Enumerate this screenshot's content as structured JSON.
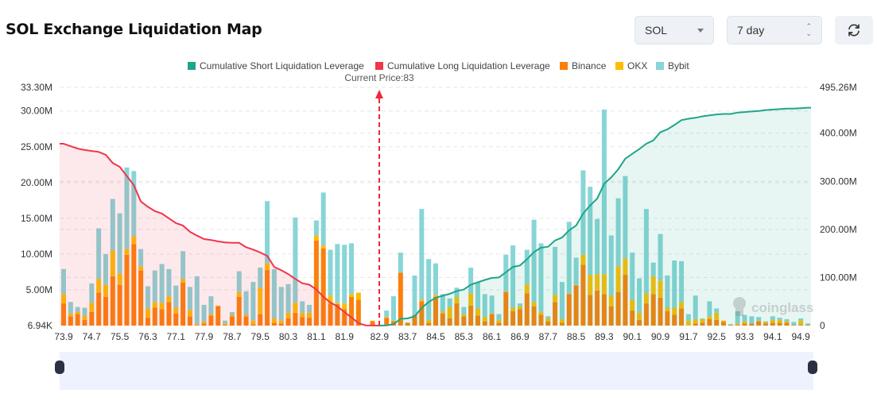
{
  "header": {
    "title": "SOL Exchange Liquidation Map",
    "symbol": "SOL",
    "period": "7 day",
    "refresh_icon": "refresh-icon"
  },
  "chart_data": {
    "type": "bar",
    "legend": [
      "Cumulative Short Liquidation Leverage",
      "Cumulative Long Liquidation Leverage",
      "Binance",
      "OKX",
      "Bybit"
    ],
    "legend_position": "top",
    "current_price_label": "Current Price:83",
    "current_price": 82.9,
    "watermark": "coinglass",
    "colors": {
      "short": "#1fa58a",
      "long": "#f0364a",
      "Binance": "#fb800a",
      "OKX": "#fcbd05",
      "Bybit": "#88d5d7"
    },
    "x_start": 73.9,
    "x_step": 0.2,
    "x_ticks": [
      "73.9",
      "74.7",
      "75.5",
      "76.3",
      "77.1",
      "77.9",
      "78.7",
      "79.5",
      "80.3",
      "81.1",
      "81.9",
      "82.9",
      "83.7",
      "84.5",
      "85.3",
      "86.1",
      "86.9",
      "87.7",
      "88.5",
      "89.3",
      "90.1",
      "90.9",
      "91.7",
      "92.5",
      "93.3",
      "94.1",
      "94.9"
    ],
    "y_left": {
      "min": 0.00694,
      "max": 33.3,
      "unit": "M",
      "ticks": [
        "33.30M",
        "30.00M",
        "25.00M",
        "20.00M",
        "15.00M",
        "10.00M",
        "5.00M",
        "6.94K"
      ],
      "tick_values": [
        33.3,
        30,
        25,
        20,
        15,
        10,
        5,
        0
      ]
    },
    "y_right": {
      "min": 0,
      "max": 495.26,
      "unit": "M",
      "ticks": [
        "495.26M",
        "400.00M",
        "300.00M",
        "200.00M",
        "100.00M",
        "0"
      ],
      "tick_values": [
        495.26,
        400,
        300,
        200,
        100,
        0
      ]
    },
    "grid": true,
    "series_order": [
      "Binance",
      "OKX",
      "Bybit"
    ],
    "bars": [
      [
        3.1,
        1.3,
        3.5
      ],
      [
        1.3,
        0.4,
        1.6
      ],
      [
        1.6,
        0.3,
        0.7
      ],
      [
        0.8,
        0.6,
        1.1
      ],
      [
        1.9,
        1.3,
        2.7
      ],
      [
        4.6,
        1.9,
        7.1
      ],
      [
        4.0,
        1.7,
        4.3
      ],
      [
        6.9,
        3.6,
        7.2
      ],
      [
        5.7,
        1.6,
        8.4
      ],
      [
        9.9,
        0.8,
        11.4
      ],
      [
        11.4,
        1.1,
        9.1
      ],
      [
        7.7,
        0.6,
        2.4
      ],
      [
        1.1,
        1.3,
        3.1
      ],
      [
        2.5,
        0.8,
        4.4
      ],
      [
        2.3,
        0.9,
        5.4
      ],
      [
        3.3,
        0.8,
        3.8
      ],
      [
        1.7,
        0.8,
        3.1
      ],
      [
        6.0,
        0.5,
        3.9
      ],
      [
        1.3,
        0.9,
        3.2
      ],
      [
        0.1,
        0.1,
        6.7
      ],
      [
        0.3,
        0.3,
        2.3
      ],
      [
        1.4,
        0.2,
        2.5
      ],
      [
        2.7,
        0.1,
        0
      ],
      [
        0.1,
        0.2,
        0.4
      ],
      [
        1.3,
        0.2,
        0.4
      ],
      [
        4.0,
        0.7,
        2.9
      ],
      [
        1.3,
        0.2,
        3.3
      ],
      [
        0.2,
        0.5,
        5.4
      ],
      [
        1.6,
        3.7,
        2.8
      ],
      [
        7.8,
        0.9,
        8.7
      ],
      [
        0.4,
        0.6,
        6.9
      ],
      [
        0.3,
        0.4,
        4.7
      ],
      [
        1.0,
        0.8,
        4.0
      ],
      [
        1.8,
        1.4,
        11.9
      ],
      [
        1.2,
        0.6,
        1.6
      ],
      [
        1.1,
        0.7,
        1.1
      ],
      [
        11.9,
        0.7,
        2.1
      ],
      [
        10.8,
        0.4,
        7.4
      ],
      [
        3.1,
        1.1,
        6.4
      ],
      [
        3.0,
        0.2,
        8.2
      ],
      [
        2.3,
        0.8,
        8.2
      ],
      [
        4.0,
        0.4,
        7.1
      ],
      [
        3.6,
        1.0,
        0
      ],
      [
        0,
        0,
        0
      ],
      [
        0.6,
        0.1,
        0
      ],
      [
        0,
        0,
        0
      ],
      [
        1.1,
        0.1,
        0.9
      ],
      [
        0.6,
        0.1,
        3.4
      ],
      [
        7.4,
        0,
        2.8
      ],
      [
        0.4,
        0,
        0
      ],
      [
        1.5,
        0,
        5.5
      ],
      [
        3.4,
        0.2,
        12.7
      ],
      [
        0.4,
        0.4,
        8.5
      ],
      [
        4.0,
        0.3,
        4.4
      ],
      [
        1.7,
        0.3,
        2.4
      ],
      [
        1.0,
        1.6,
        1.2
      ],
      [
        3.1,
        0.9,
        1.3
      ],
      [
        1.3,
        0.3,
        1.0
      ],
      [
        2.8,
        1.7,
        3.6
      ],
      [
        1.4,
        1.0,
        3.6
      ],
      [
        0.6,
        0.6,
        3.2
      ],
      [
        1.6,
        0.1,
        2.5
      ],
      [
        0.4,
        0.4,
        0.8
      ],
      [
        4.7,
        0.1,
        5.1
      ],
      [
        2.0,
        0.5,
        8.7
      ],
      [
        2.3,
        0.4,
        0.4
      ],
      [
        4.5,
        1.3,
        4.8
      ],
      [
        2.7,
        0.6,
        11.5
      ],
      [
        1.5,
        0.4,
        9.6
      ],
      [
        0.6,
        0.4,
        0.3
      ],
      [
        3.3,
        1.0,
        6.7
      ],
      [
        0.4,
        0.5,
        5.2
      ],
      [
        4.4,
        0.1,
        10.0
      ],
      [
        5.6,
        0.1,
        3.8
      ],
      [
        8.5,
        1.4,
        11.8
      ],
      [
        4.3,
        2.8,
        12.3
      ],
      [
        4.9,
        2.3,
        7.7
      ],
      [
        4.4,
        2.8,
        23.0
      ],
      [
        2.7,
        1.5,
        8.4
      ],
      [
        4.7,
        3.6,
        9.5
      ],
      [
        7.1,
        2.3,
        11.5
      ],
      [
        2.1,
        1.5,
        6.6
      ],
      [
        0.8,
        1.0,
        4.8
      ],
      [
        3.1,
        1.4,
        11.8
      ],
      [
        4.4,
        2.5,
        1.9
      ],
      [
        3.9,
        2.4,
        6.5
      ],
      [
        2.0,
        0.5,
        4.5
      ],
      [
        1.5,
        1.0,
        6.6
      ],
      [
        2.4,
        0.9,
        5.7
      ],
      [
        0,
        0.7,
        0.9
      ],
      [
        0.3,
        0.6,
        3.3
      ],
      [
        0.4,
        0.5,
        0.1
      ],
      [
        0.9,
        0.4,
        2.1
      ],
      [
        0.8,
        1.0,
        0.6
      ],
      [
        0.5,
        0.2,
        0
      ],
      [
        0.1,
        0,
        0.1
      ],
      [
        0.1,
        0.2,
        1.7
      ],
      [
        0.3,
        0.3,
        0.9
      ],
      [
        0.3,
        0,
        1.0
      ],
      [
        0.6,
        0.1,
        0.5
      ],
      [
        0.3,
        0.2,
        0.1
      ],
      [
        0.4,
        0.4,
        0.5
      ],
      [
        0.4,
        0.4,
        0.3
      ],
      [
        0.4,
        0.2,
        0.3
      ],
      [
        0.1,
        0,
        0.4
      ],
      [
        0.1,
        0.6,
        0.3
      ],
      [
        0.1,
        0,
        0.2
      ]
    ],
    "cumulative_long": [
      378,
      373,
      368,
      365,
      363,
      361,
      355,
      338,
      330,
      311,
      292,
      258,
      247,
      238,
      233,
      223,
      213,
      208,
      195,
      187,
      180,
      178,
      175,
      173,
      172,
      172,
      163,
      158,
      152,
      145,
      122,
      115,
      107,
      97,
      88,
      85,
      75,
      60,
      48,
      40,
      28,
      17,
      5,
      0.5,
      0.2,
      0
    ],
    "cumulative_short": [
      0,
      0.5,
      3,
      14,
      15,
      19,
      37,
      49,
      58,
      62,
      66,
      72,
      75,
      85,
      90,
      95,
      99,
      100,
      111,
      122,
      125,
      138,
      153,
      162,
      164,
      177,
      183,
      198,
      208,
      233,
      250,
      264,
      295,
      308,
      325,
      347,
      357,
      367,
      378,
      385,
      402,
      408,
      417,
      427,
      430,
      432,
      435,
      437,
      439,
      440,
      440,
      443,
      444,
      445,
      446,
      448,
      449,
      450,
      451,
      451,
      452,
      453
    ]
  }
}
